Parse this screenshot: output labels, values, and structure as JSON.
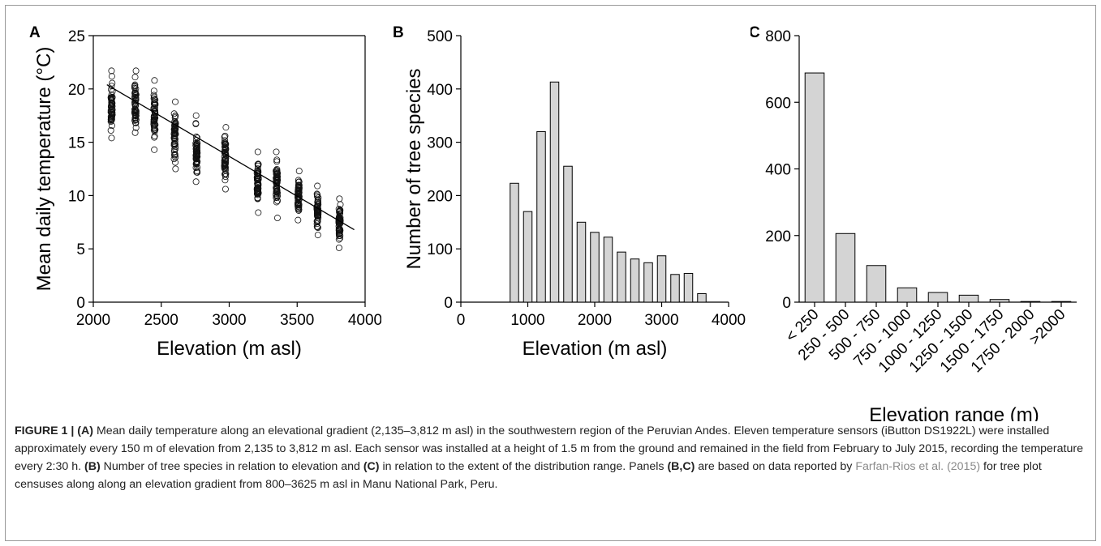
{
  "chart_data": [
    {
      "panel": "A",
      "type": "scatter",
      "xlabel": "Elevation (m asl)",
      "ylabel": "Mean daily temperature (°C)",
      "xlim": [
        2000,
        4000
      ],
      "ylim": [
        0,
        25
      ],
      "xticks": [
        2000,
        2500,
        3000,
        3500,
        4000
      ],
      "yticks": [
        0,
        5,
        10,
        15,
        20,
        25
      ],
      "groups": [
        {
          "x": 2135,
          "ymin": 15.4,
          "ymax": 21.7,
          "ymean": 19.0
        },
        {
          "x": 2310,
          "ymin": 15.9,
          "ymax": 21.7,
          "ymean": 18.7
        },
        {
          "x": 2450,
          "ymin": 14.3,
          "ymax": 20.8,
          "ymean": 17.7
        },
        {
          "x": 2600,
          "ymin": 12.5,
          "ymax": 18.8,
          "ymean": 16.1
        },
        {
          "x": 2760,
          "ymin": 11.3,
          "ymax": 17.5,
          "ymean": 14.8
        },
        {
          "x": 2970,
          "ymin": 10.6,
          "ymax": 16.4,
          "ymean": 13.5
        },
        {
          "x": 3210,
          "ymin": 8.4,
          "ymax": 14.1,
          "ymean": 11.6
        },
        {
          "x": 3350,
          "ymin": 7.9,
          "ymax": 14.1,
          "ymean": 11.1
        },
        {
          "x": 3510,
          "ymin": 7.7,
          "ymax": 12.3,
          "ymean": 10.2
        },
        {
          "x": 3650,
          "ymin": 6.3,
          "ymax": 10.9,
          "ymean": 8.3
        },
        {
          "x": 3812,
          "ymin": 5.1,
          "ymax": 9.7,
          "ymean": 7.3
        }
      ],
      "fit_line": {
        "x": [
          2100,
          3920
        ],
        "y": [
          20.4,
          6.8
        ]
      }
    },
    {
      "panel": "B",
      "type": "bar",
      "xlabel": "Elevation (m asl)",
      "ylabel": "Number of tree species",
      "xlim": [
        0,
        4000
      ],
      "ylim": [
        0,
        500
      ],
      "xticks": [
        0,
        1000,
        2000,
        3000,
        4000
      ],
      "yticks": [
        0,
        100,
        200,
        300,
        400,
        500
      ],
      "bin_width": 200,
      "x": [
        800,
        1000,
        1200,
        1400,
        1600,
        1800,
        2000,
        2200,
        2400,
        2600,
        2800,
        3000,
        3200,
        3400,
        3600
      ],
      "values": [
        223,
        170,
        320,
        413,
        255,
        150,
        131,
        122,
        94,
        81,
        74,
        87,
        52,
        54,
        16
      ]
    },
    {
      "panel": "C",
      "type": "bar",
      "xlabel": "Elevation range (m)",
      "ylabel": "",
      "ylim": [
        0,
        800
      ],
      "yticks": [
        0,
        200,
        400,
        600,
        800
      ],
      "categories": [
        "< 250",
        "250 - 500",
        "500 - 750",
        "750 - 1000",
        "1000 - 1250",
        "1250 - 1500",
        "1500 - 1750",
        "1750 - 2000",
        ">2000"
      ],
      "values": [
        688,
        206,
        110,
        43,
        29,
        21,
        8,
        2,
        2
      ]
    }
  ],
  "caption": {
    "lead": "FIGURE 1 | ",
    "a_tag": "(A)",
    "a_text": " Mean daily temperature along an elevational gradient (2,135–3,812 m asl) in the southwestern region of the Peruvian Andes. Eleven temperature sensors (iButton DS1922L) were installed approximately every 150 m of elevation from 2,135 to 3,812 m asl. Each sensor was installed at a height of 1.5 m from the ground and remained in the field from February to July 2015, recording the temperature every 2:30 h. ",
    "b_tag": "(B)",
    "b_text": " Number of tree species in relation to elevation and ",
    "c_tag": "(C)",
    "c_text": " in relation to the extent of the distribution range. Panels ",
    "bc_tag": "(B,C)",
    "bc_text": " are based on data reported by ",
    "ref": "Farfan-Rios et al. (2015)",
    "end_text": " for tree plot censuses along along an elevation gradient from 800–3625 m asl in Manu National Park, Peru."
  }
}
